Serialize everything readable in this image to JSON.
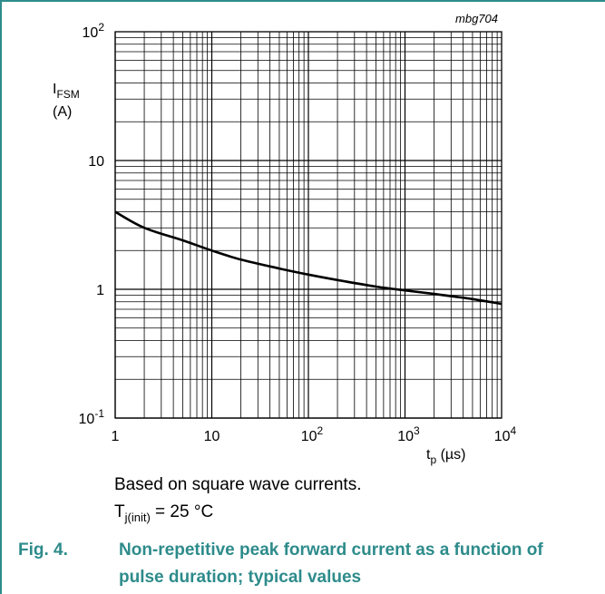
{
  "chart_data": {
    "type": "line",
    "code": "mbg704",
    "ylabel": {
      "symbol": "I",
      "sub": "FSM",
      "unit": "(A)"
    },
    "xlabel": {
      "symbol": "t",
      "sub": "p",
      "unit": " (µs)"
    },
    "x_scale": "log",
    "y_scale": "log",
    "xlim": [
      1,
      10000
    ],
    "ylim": [
      0.1,
      100
    ],
    "grid": true,
    "x_ticks": [
      {
        "value": 1,
        "base": "1",
        "exp": ""
      },
      {
        "value": 10,
        "base": "10",
        "exp": ""
      },
      {
        "value": 100,
        "base": "10",
        "exp": "2"
      },
      {
        "value": 1000,
        "base": "10",
        "exp": "3"
      },
      {
        "value": 10000,
        "base": "10",
        "exp": "4"
      }
    ],
    "y_ticks": [
      {
        "value": 100,
        "base": "10",
        "exp": "2"
      },
      {
        "value": 10,
        "base": "10",
        "exp": ""
      },
      {
        "value": 1,
        "base": "1",
        "exp": ""
      },
      {
        "value": 0.1,
        "base": "10",
        "exp": "-1"
      }
    ],
    "series": [
      {
        "x": [
          1,
          2,
          5,
          10,
          20,
          50,
          100,
          200,
          500,
          1000,
          2000,
          5000,
          10000
        ],
        "y": [
          4.0,
          3.0,
          2.4,
          2.0,
          1.7,
          1.45,
          1.3,
          1.18,
          1.05,
          0.98,
          0.92,
          0.84,
          0.77
        ]
      }
    ]
  },
  "notes": {
    "line1": "Based on square wave currents.",
    "line2_symbol": "T",
    "line2_sub": "j(init)",
    "line2_rest": " = 25 °C"
  },
  "caption": {
    "number": "Fig. 4.",
    "text": "Non-repetitive peak forward current as a function of pulse duration; typical values"
  },
  "colors": {
    "accent": "#2e8b8b",
    "curve": "#000000",
    "grid": "#000000"
  }
}
